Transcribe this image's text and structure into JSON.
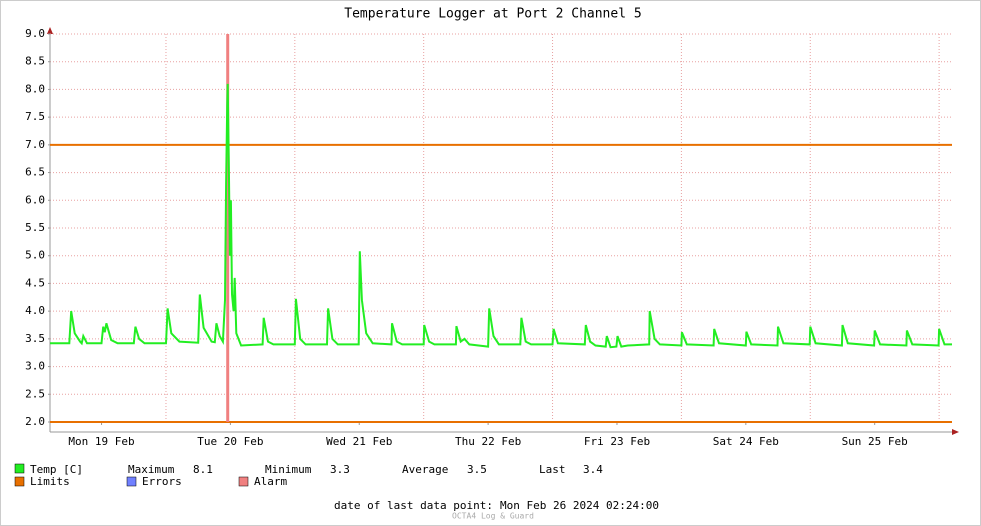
{
  "chart_data": {
    "type": "line",
    "title": "Temperature Logger at Port 2 Channel 5",
    "xlim": [
      2.4,
      170.4
    ],
    "xticks": [
      {
        "value": 12,
        "label": "Mon 19 Feb"
      },
      {
        "value": 36,
        "label": "Tue 20 Feb"
      },
      {
        "value": 60,
        "label": "Wed 21 Feb"
      },
      {
        "value": 84,
        "label": "Thu 22 Feb"
      },
      {
        "value": 108,
        "label": "Fri 23 Feb"
      },
      {
        "value": 132,
        "label": "Sat 24 Feb"
      },
      {
        "value": 156,
        "label": "Sun 25 Feb"
      }
    ],
    "xgrid": [
      24,
      48,
      72,
      96,
      120,
      144,
      168
    ],
    "ylim": [
      2,
      9
    ],
    "yticks": [
      {
        "value": 2,
        "label": "2.0"
      },
      2.5,
      {
        "value": 3,
        "label": "3.0"
      },
      3.5,
      {
        "value": 4,
        "label": "4.0"
      },
      4.5,
      {
        "value": 5,
        "label": "5.0"
      },
      5.5,
      {
        "value": 6,
        "label": "6.0"
      },
      6.5,
      {
        "value": 7,
        "label": "7.0"
      },
      7.5,
      {
        "value": 8,
        "label": "8.0"
      },
      8.5,
      {
        "value": 9,
        "label": "9.0"
      }
    ],
    "grid": true,
    "series": [
      {
        "name": "Temp [C]",
        "color": "#22ee22",
        "x": [
          2.4,
          6.0,
          6.35,
          7.0,
          8.0,
          8.3,
          8.6,
          9.3,
          12.0,
          12.3,
          12.6,
          12.9,
          13.8,
          15,
          18.0,
          18.3,
          19.0,
          20,
          24.0,
          24.3,
          25.0,
          26.5,
          30.0,
          30.3,
          31.0,
          32.5,
          33.1,
          33.4,
          34.0,
          34.6,
          35.0,
          35.2,
          35.4,
          35.5,
          35.7,
          35.9,
          36.1,
          36.3,
          36.6,
          36.8,
          37.1,
          38.0,
          42.0,
          42.2,
          43.0,
          44,
          48.0,
          48.2,
          49,
          50,
          54.0,
          54.2,
          55,
          56,
          59.9,
          60.1,
          60.5,
          61.3,
          62.5,
          66.0,
          66.1,
          67,
          68,
          72.0,
          72.1,
          73,
          74,
          78,
          78.1,
          78.9,
          79.6,
          80.5,
          84.0,
          84.2,
          85.0,
          86,
          90.0,
          90.2,
          91,
          92,
          96.0,
          96.2,
          97,
          102,
          102.2,
          103,
          104,
          105.9,
          106.1,
          106.8,
          107.9,
          108.1,
          108.8,
          110,
          114.0,
          114.1,
          115,
          116,
          120,
          120.1,
          121,
          126,
          126.1,
          127,
          132,
          132.1,
          133,
          137.9,
          138.0,
          139,
          143.9,
          144.0,
          145,
          149.9,
          150.0,
          151,
          155.9,
          156.0,
          157,
          161.9,
          162.0,
          163,
          167.9,
          168.0,
          169,
          170.4
        ],
        "values": [
          3.42,
          3.42,
          4.0,
          3.6,
          3.45,
          3.42,
          3.55,
          3.42,
          3.42,
          3.72,
          3.62,
          3.78,
          3.48,
          3.42,
          3.42,
          3.72,
          3.5,
          3.42,
          3.42,
          4.05,
          3.6,
          3.45,
          3.43,
          4.3,
          3.7,
          3.45,
          3.44,
          3.78,
          3.55,
          3.45,
          4.2,
          6.3,
          7.7,
          8.1,
          6.7,
          5.0,
          6.0,
          4.3,
          4.0,
          4.6,
          3.6,
          3.38,
          3.4,
          3.88,
          3.45,
          3.4,
          3.4,
          4.22,
          3.5,
          3.4,
          3.4,
          4.05,
          3.5,
          3.4,
          3.4,
          5.08,
          4.2,
          3.6,
          3.42,
          3.4,
          3.78,
          3.45,
          3.4,
          3.4,
          3.75,
          3.45,
          3.4,
          3.4,
          3.73,
          3.45,
          3.5,
          3.4,
          3.36,
          4.05,
          3.55,
          3.4,
          3.4,
          3.88,
          3.45,
          3.4,
          3.4,
          3.68,
          3.42,
          3.4,
          3.75,
          3.45,
          3.38,
          3.36,
          3.55,
          3.35,
          3.36,
          3.55,
          3.36,
          3.38,
          3.4,
          4.0,
          3.5,
          3.4,
          3.38,
          3.62,
          3.4,
          3.38,
          3.68,
          3.42,
          3.38,
          3.63,
          3.4,
          3.38,
          3.72,
          3.42,
          3.4,
          3.72,
          3.42,
          3.38,
          3.75,
          3.42,
          3.38,
          3.65,
          3.4,
          3.38,
          3.65,
          3.4,
          3.38,
          3.68,
          3.4,
          3.4
        ]
      }
    ],
    "limits": {
      "name": "Limits",
      "color": "#e87000",
      "values": [
        7,
        2
      ]
    },
    "errors": {
      "name": "Errors",
      "color": "#7080ff"
    },
    "alarm": {
      "name": "Alarm",
      "color": "#f08080",
      "x": 35.5
    },
    "stats": [
      {
        "label": "Maximum",
        "value": 8.1
      },
      {
        "label": "Minimum",
        "value": 3.3
      },
      {
        "label": "Average",
        "value": 3.5
      },
      {
        "label": "Last",
        "value": 3.4
      }
    ],
    "footer_label": "date of last data point:",
    "footer_date": "Mon Feb 26 2024 02:24:00",
    "watermark": "OCTA4 Log & Guard"
  }
}
